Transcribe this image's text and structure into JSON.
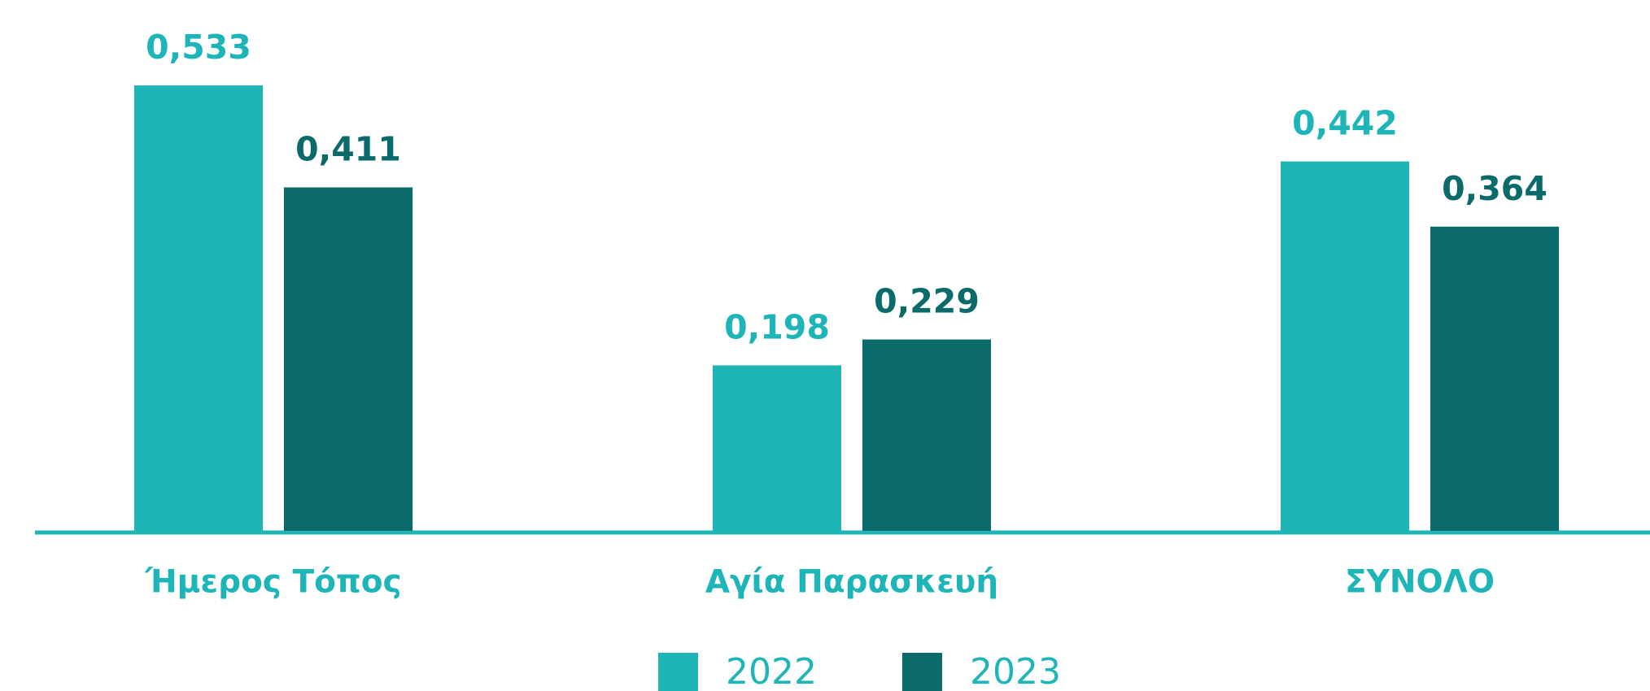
{
  "chart_data": {
    "type": "bar",
    "categories": [
      "Ήμερος Τόπος",
      "Αγία Παρασκευή",
      "ΣΥΝΟΛΟ"
    ],
    "series": [
      {
        "name": "2022",
        "color": "#1db5b8",
        "values": [
          0.533,
          0.198,
          0.442
        ],
        "value_labels": [
          "0,533",
          "0,198",
          "0,442"
        ]
      },
      {
        "name": "2023",
        "color": "#0b6b6b",
        "values": [
          0.411,
          0.229,
          0.364
        ],
        "value_labels": [
          "0,411",
          "0,229",
          "0,364"
        ]
      }
    ]
  }
}
